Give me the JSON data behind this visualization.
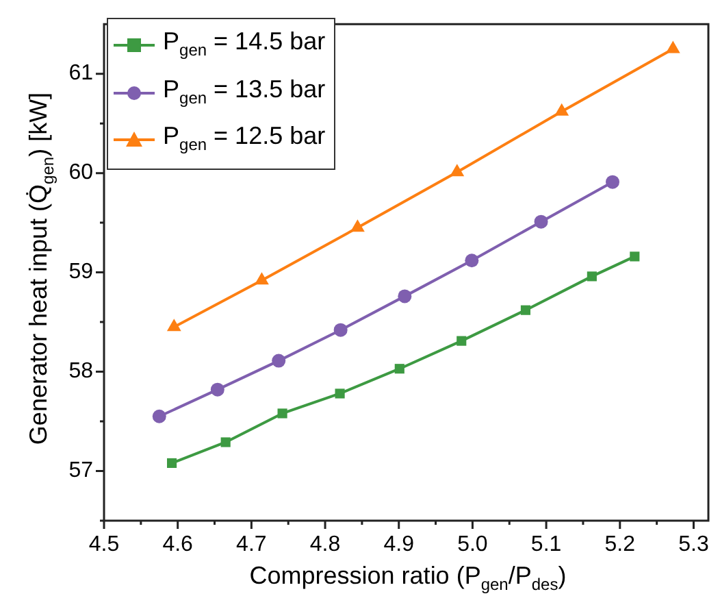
{
  "chart_data": {
    "type": "line",
    "xlabel": "Compression ratio (P$_{gen}$/P$_{des}$)",
    "ylabel": "Generator heat input (Q̇$_{gen}$) [kW]",
    "xlim": [
      4.5,
      5.32
    ],
    "ylim": [
      56.5,
      61.5
    ],
    "xticks": [
      4.5,
      {
        "value": 4.55,
        "label": null
      },
      4.6,
      {
        "value": 4.65,
        "label": null
      },
      4.7,
      {
        "value": 4.75,
        "label": null
      },
      4.8,
      {
        "value": 4.85,
        "label": null
      },
      4.9,
      {
        "value": 4.95,
        "label": null
      },
      {
        "value": 5.0,
        "label": "5.0"
      },
      {
        "value": 5.05,
        "label": null
      },
      5.1,
      {
        "value": 5.15,
        "label": null
      },
      5.2,
      {
        "value": 5.25,
        "label": null
      },
      5.3
    ],
    "yticks": [
      {
        "value": 56.5,
        "label": null
      },
      57,
      {
        "value": 57.5,
        "label": null
      },
      58,
      {
        "value": 58.5,
        "label": null
      },
      59,
      {
        "value": 59.5,
        "label": null
      },
      60,
      {
        "value": 60.5,
        "label": null
      },
      61
    ],
    "grid": false,
    "legend": "top left",
    "line_style": "solid",
    "series": [
      {
        "name": "P$_{gen}$ = 14.5 bar",
        "color": "#3d9a42",
        "marker": "square",
        "x": [
          4.592,
          4.665,
          4.742,
          4.82,
          4.901,
          4.985,
          5.072,
          5.162,
          5.22
        ],
        "values": [
          57.08,
          57.29,
          57.58,
          57.78,
          58.03,
          58.31,
          58.62,
          58.96,
          59.16
        ]
      },
      {
        "name": "P$_{gen}$ = 13.5 bar",
        "color": "#7f5faf",
        "marker": "circle",
        "x": [
          4.575,
          4.654,
          4.737,
          4.821,
          4.908,
          4.999,
          5.093,
          5.19
        ],
        "values": [
          57.55,
          57.82,
          58.11,
          58.42,
          58.76,
          59.12,
          59.51,
          59.91
        ]
      },
      {
        "name": "P$_{gen}$ = 12.5 bar",
        "color": "#fd7f12",
        "marker": "triangle",
        "x": [
          4.595,
          4.714,
          4.844,
          4.979,
          5.121,
          5.272
        ],
        "values": [
          58.45,
          58.92,
          59.45,
          60.01,
          60.62,
          61.25
        ]
      }
    ]
  }
}
